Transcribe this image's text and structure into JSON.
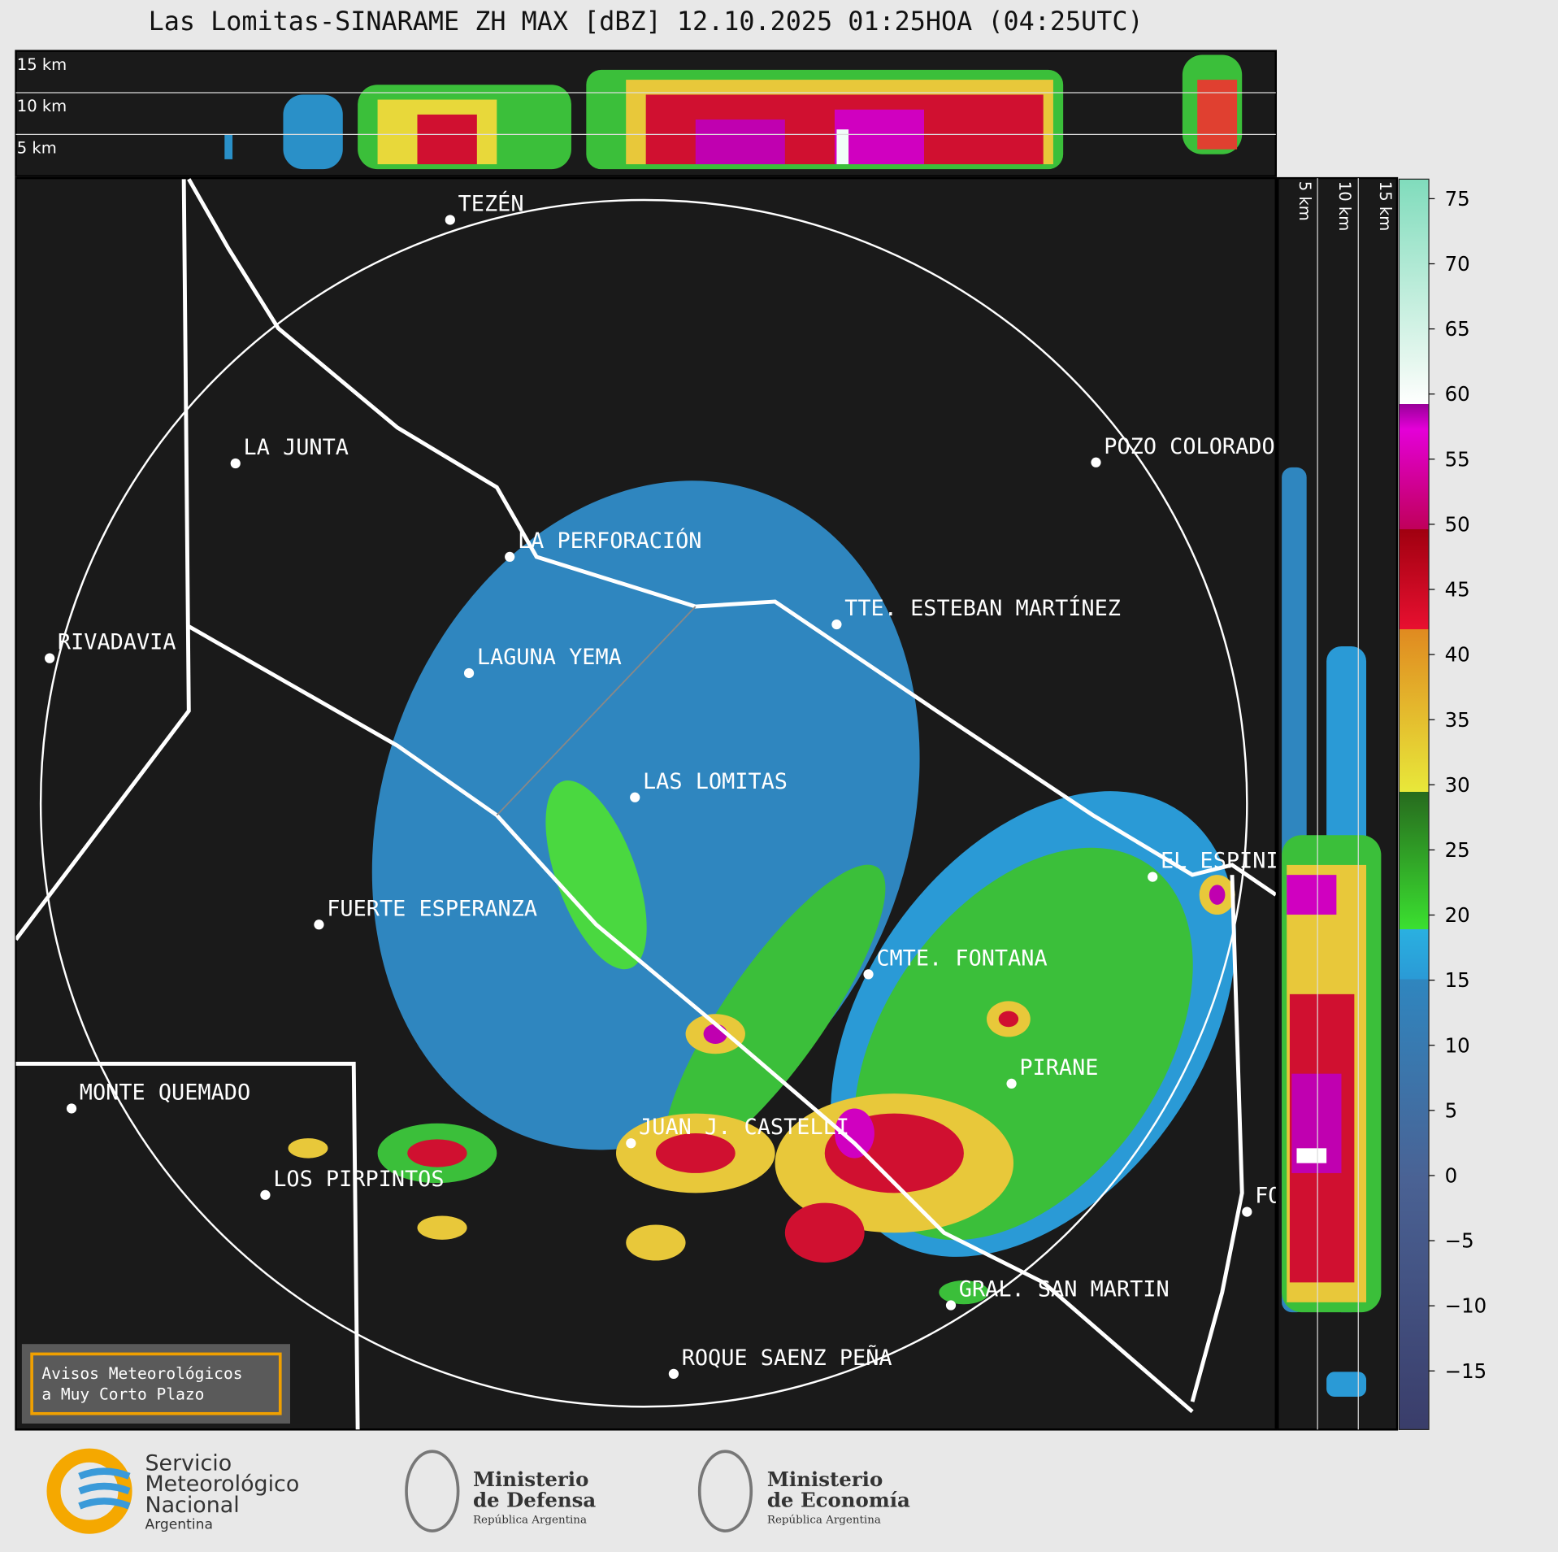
{
  "title": "Las Lomitas-SINARAME ZH MAX [dBZ] 12.10.2025 01:25HOA (04:25UTC)",
  "top_panel": {
    "height_labels": [
      "15 km",
      "10 km",
      "5 km"
    ]
  },
  "side_panel": {
    "height_labels": [
      "5 km",
      "10 km",
      "15 km"
    ]
  },
  "cities": [
    "TEZÉN",
    "LA JUNTA",
    "POZO COLORADO",
    "LA PERFORACIÓN",
    "TTE. ESTEBAN MARTÍNEZ",
    "RIVADAVIA",
    "LAGUNA YEMA",
    "LAS LOMITAS",
    "EL ESPINILLO",
    "FUERTE ESPERANZA",
    "CMTE. FONTANA",
    "PIRANE",
    "MONTE QUEMADO",
    "JUAN J. CASTELLI",
    "LOS PIRPINTOS",
    "GRAL. SAN MARTIN",
    "ROQUE SAENZ PEÑA",
    "FORMOSA"
  ],
  "colorbar": {
    "range": [
      -19.5,
      76.5
    ],
    "ticks": [
      {
        "value": -15,
        "label": "−15"
      },
      {
        "value": -10,
        "label": "−10"
      },
      {
        "value": -5,
        "label": "−5"
      },
      0,
      5,
      10,
      15,
      20,
      25,
      30,
      35,
      40,
      45,
      50,
      55,
      60,
      65,
      70,
      75
    ]
  },
  "warning_box": [
    "Avisos Meteorológicos",
    "a Muy Corto Plazo"
  ],
  "logos": {
    "smn": [
      "Servicio",
      "Meteorológico",
      "Nacional",
      "Argentina"
    ],
    "defensa": [
      "Ministerio",
      "de Defensa",
      "República Argentina"
    ],
    "economia": [
      "Ministerio",
      "de Economía",
      "República Argentina"
    ]
  }
}
